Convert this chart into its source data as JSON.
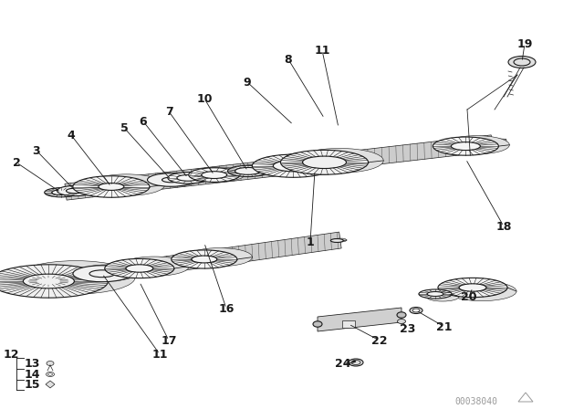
{
  "bg_color": "#ffffff",
  "line_color": "#1a1a1a",
  "watermark": "00038040",
  "label_fs": 9,
  "lw": 0.8
}
